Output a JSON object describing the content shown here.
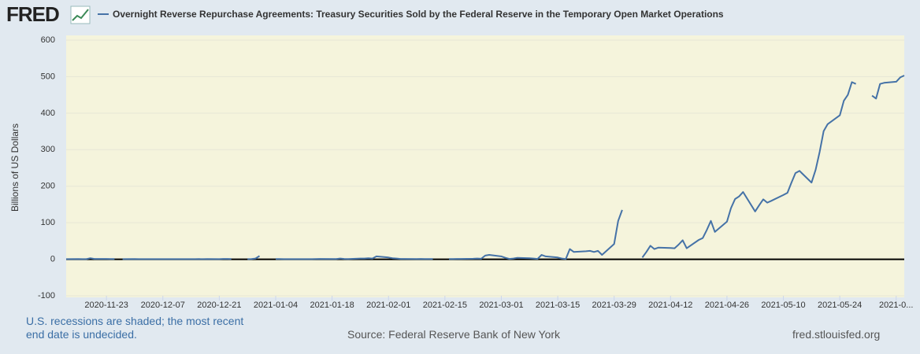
{
  "logo": "FRED",
  "chart_data": {
    "type": "line",
    "title": "Overnight Reverse Repurchase Agreements: Treasury Securities Sold by the Federal Reserve in the Temporary Open Market Operations",
    "y_label": "Billions of US Dollars",
    "note": "U.S. recessions are shaded; the most recent end date is undecided.",
    "source": "Source: Federal Reserve Bank of New York",
    "site": "fred.stlouisfed.org",
    "xlim": [
      "2020-11-13",
      "2021-06-09"
    ],
    "xticks": [
      "2020-11-23",
      "2020-12-07",
      "2020-12-21",
      "2021-01-04",
      "2021-01-18",
      "2021-02-01",
      "2021-02-15",
      "2021-03-01",
      "2021-03-15",
      "2021-03-29",
      "2021-04-12",
      "2021-04-26",
      "2021-05-10",
      "2021-05-24",
      {
        "value": "2021-06-07",
        "label": "2021-0..."
      }
    ],
    "ylim": [
      -100,
      600
    ],
    "yticks": [
      -100,
      0,
      100,
      200,
      300,
      400,
      500,
      600
    ],
    "grid": true,
    "x": [
      "2020-11-13",
      "2020-11-16",
      "2020-11-17",
      "2020-11-18",
      "2020-11-19",
      "2020-11-20",
      "2020-11-23",
      "2020-11-24",
      "2020-11-25",
      "2020-11-26",
      "2020-11-27",
      "2020-11-30",
      "2020-12-01",
      "2020-12-02",
      "2020-12-03",
      "2020-12-04",
      "2020-12-07",
      "2020-12-08",
      "2020-12-09",
      "2020-12-10",
      "2020-12-11",
      "2020-12-14",
      "2020-12-15",
      "2020-12-16",
      "2020-12-17",
      "2020-12-18",
      "2020-12-21",
      "2020-12-22",
      "2020-12-23",
      "2020-12-24",
      "2020-12-25",
      "2020-12-28",
      "2020-12-29",
      "2020-12-30",
      "2020-12-31",
      "2021-01-01",
      "2021-01-04",
      "2021-01-05",
      "2021-01-06",
      "2021-01-07",
      "2021-01-08",
      "2021-01-11",
      "2021-01-12",
      "2021-01-13",
      "2021-01-14",
      "2021-01-15",
      "2021-01-19",
      "2021-01-20",
      "2021-01-21",
      "2021-01-22",
      "2021-01-25",
      "2021-01-26",
      "2021-01-27",
      "2021-01-28",
      "2021-01-29",
      "2021-02-01",
      "2021-02-02",
      "2021-02-03",
      "2021-02-04",
      "2021-02-05",
      "2021-02-08",
      "2021-02-09",
      "2021-02-10",
      "2021-02-11",
      "2021-02-12",
      "2021-02-15",
      "2021-02-16",
      "2021-02-17",
      "2021-02-18",
      "2021-02-19",
      "2021-02-22",
      "2021-02-23",
      "2021-02-24",
      "2021-02-25",
      "2021-02-26",
      "2021-03-01",
      "2021-03-02",
      "2021-03-03",
      "2021-03-04",
      "2021-03-05",
      "2021-03-08",
      "2021-03-09",
      "2021-03-10",
      "2021-03-11",
      "2021-03-12",
      "2021-03-15",
      "2021-03-16",
      "2021-03-17",
      "2021-03-18",
      "2021-03-19",
      "2021-03-22",
      "2021-03-23",
      "2021-03-24",
      "2021-03-25",
      "2021-03-26",
      "2021-03-29",
      "2021-03-30",
      "2021-03-31",
      "2021-04-01",
      "2021-04-05",
      "2021-04-06",
      "2021-04-07",
      "2021-04-08",
      "2021-04-09",
      "2021-04-12",
      "2021-04-13",
      "2021-04-14",
      "2021-04-15",
      "2021-04-16",
      "2021-04-19",
      "2021-04-20",
      "2021-04-21",
      "2021-04-22",
      "2021-04-23",
      "2021-04-26",
      "2021-04-27",
      "2021-04-28",
      "2021-04-29",
      "2021-04-30",
      "2021-05-03",
      "2021-05-04",
      "2021-05-05",
      "2021-05-06",
      "2021-05-07",
      "2021-05-10",
      "2021-05-11",
      "2021-05-12",
      "2021-05-13",
      "2021-05-14",
      "2021-05-17",
      "2021-05-18",
      "2021-05-19",
      "2021-05-20",
      "2021-05-21",
      "2021-05-24",
      "2021-05-25",
      "2021-05-26",
      "2021-05-27",
      "2021-05-28",
      "2021-05-31",
      "2021-06-01",
      "2021-06-02",
      "2021-06-03",
      "2021-06-04",
      "2021-06-07",
      "2021-06-08",
      "2021-06-09"
    ],
    "series": [
      {
        "name": "Overnight Reverse Repurchase Agreements: Treasury Securities Sold by the Federal Reserve in the Temporary Open Market Operations",
        "color": "#4572a7",
        "values": [
          0.3,
          0.5,
          0.3,
          0.3,
          3,
          1,
          1,
          0.5,
          0.5,
          null,
          0.3,
          0.5,
          0.3,
          0.3,
          0.3,
          0.3,
          0.3,
          0.3,
          0.3,
          0.3,
          0.3,
          0.3,
          0.3,
          0.5,
          0.3,
          0.5,
          0.3,
          1,
          1,
          0.5,
          null,
          0.3,
          0.5,
          2,
          9,
          null,
          0.5,
          0.5,
          0.3,
          0.3,
          0.3,
          0.3,
          0.3,
          0.3,
          0.5,
          1,
          0.5,
          2,
          1,
          0.5,
          2,
          2,
          3,
          2,
          8,
          5,
          3,
          2,
          1,
          1,
          0.5,
          1,
          0.5,
          0.5,
          0.5,
          null,
          0.5,
          0.5,
          1,
          1,
          1.5,
          2,
          1.5,
          10,
          12,
          8,
          4,
          1,
          2,
          4,
          3,
          2,
          1,
          12,
          8,
          5,
          2,
          0.5,
          28,
          20,
          22,
          23,
          20,
          23,
          12,
          42,
          105,
          135,
          null,
          5,
          20,
          37,
          28,
          32,
          31,
          30,
          40,
          52,
          30,
          53,
          58,
          80,
          105,
          75,
          103,
          140,
          165,
          172,
          184,
          131,
          148,
          164,
          155,
          160,
          176,
          182,
          210,
          236,
          242,
          210,
          245,
          294,
          351,
          370,
          394,
          434,
          450,
          485,
          480,
          null,
          448,
          440,
          480,
          483,
          486,
          498,
          503
        ]
      }
    ]
  }
}
